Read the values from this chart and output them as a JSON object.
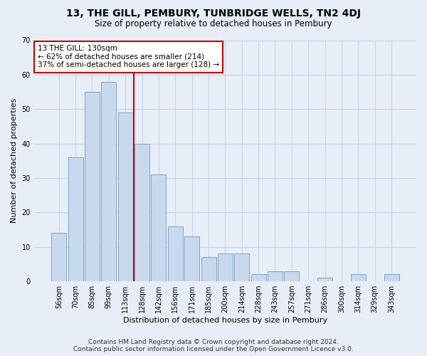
{
  "title": "13, THE GILL, PEMBURY, TUNBRIDGE WELLS, TN2 4DJ",
  "subtitle": "Size of property relative to detached houses in Pembury",
  "xlabel": "Distribution of detached houses by size in Pembury",
  "ylabel": "Number of detached properties",
  "categories": [
    "56sqm",
    "70sqm",
    "85sqm",
    "99sqm",
    "113sqm",
    "128sqm",
    "142sqm",
    "156sqm",
    "171sqm",
    "185sqm",
    "200sqm",
    "214sqm",
    "228sqm",
    "243sqm",
    "257sqm",
    "271sqm",
    "286sqm",
    "300sqm",
    "314sqm",
    "329sqm",
    "343sqm"
  ],
  "values": [
    14,
    36,
    55,
    58,
    49,
    40,
    31,
    16,
    13,
    7,
    8,
    8,
    2,
    3,
    3,
    0,
    1,
    0,
    2,
    0,
    2
  ],
  "bar_color": "#c9d9ed",
  "bar_edge_color": "#7aa6cc",
  "grid_color": "#c8d4e8",
  "background_color": "#e8eef8",
  "vline_color": "#cc0000",
  "vline_x_index": 5,
  "annotation_line1": "13 THE GILL: 130sqm",
  "annotation_line2": "← 62% of detached houses are smaller (214)",
  "annotation_line3": "37% of semi-detached houses are larger (128) →",
  "annotation_box_color": "#ffffff",
  "annotation_box_edge": "#cc0000",
  "footer_line1": "Contains HM Land Registry data © Crown copyright and database right 2024.",
  "footer_line2": "Contains public sector information licensed under the Open Government Licence v3.0.",
  "ylim": [
    0,
    70
  ],
  "yticks": [
    0,
    10,
    20,
    30,
    40,
    50,
    60,
    70
  ],
  "title_fontsize": 10,
  "subtitle_fontsize": 8.5,
  "axis_label_fontsize": 8,
  "tick_fontsize": 7,
  "annotation_fontsize": 7.5,
  "footer_fontsize": 6.5
}
